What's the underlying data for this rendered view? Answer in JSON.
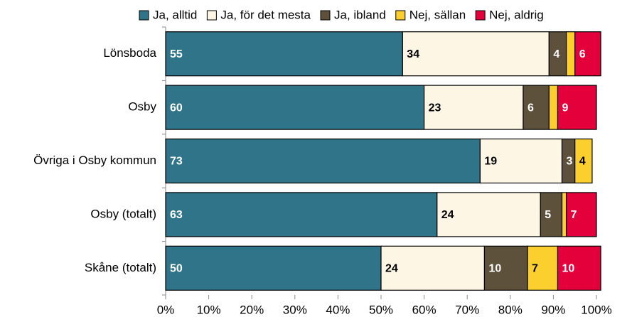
{
  "chart_data": {
    "type": "stacked_barh",
    "categories": [
      "Lönsboda",
      "Osby",
      "Övriga i Osby kommun",
      "Osby (totalt)",
      "Skåne (totalt)"
    ],
    "series": [
      {
        "name": "Ja, alltid",
        "color": "#2f7489",
        "label_color": "#ffffff",
        "values": [
          55,
          60,
          73,
          63,
          50
        ]
      },
      {
        "name": "Ja, för det mesta",
        "color": "#fdf6e4",
        "label_color": "#000000",
        "values": [
          34,
          23,
          19,
          24,
          24
        ]
      },
      {
        "name": "Ja, ibland",
        "color": "#5e513c",
        "label_color": "#ffffff",
        "values": [
          4,
          6,
          3,
          5,
          10
        ]
      },
      {
        "name": "Nej, sällan",
        "color": "#fbd02e",
        "label_color": "#000000",
        "values": [
          2,
          2,
          4,
          1,
          7
        ]
      },
      {
        "name": "Nej, aldrig",
        "color": "#e4003b",
        "label_color": "#ffffff",
        "values": [
          6,
          9,
          null,
          7,
          10
        ]
      }
    ],
    "xlim": [
      0,
      100
    ],
    "xticks": [
      {
        "value": 0,
        "label": "0%"
      },
      {
        "value": 10,
        "label": "10%"
      },
      {
        "value": 20,
        "label": "20%"
      },
      {
        "value": 30,
        "label": "30%"
      },
      {
        "value": 40,
        "label": "40%"
      },
      {
        "value": 50,
        "label": "50%"
      },
      {
        "value": 60,
        "label": "60%"
      },
      {
        "value": 70,
        "label": "70%"
      },
      {
        "value": 80,
        "label": "80%"
      },
      {
        "value": 90,
        "label": "90%"
      },
      {
        "value": 100,
        "label": "100%"
      }
    ],
    "legend": "top"
  }
}
